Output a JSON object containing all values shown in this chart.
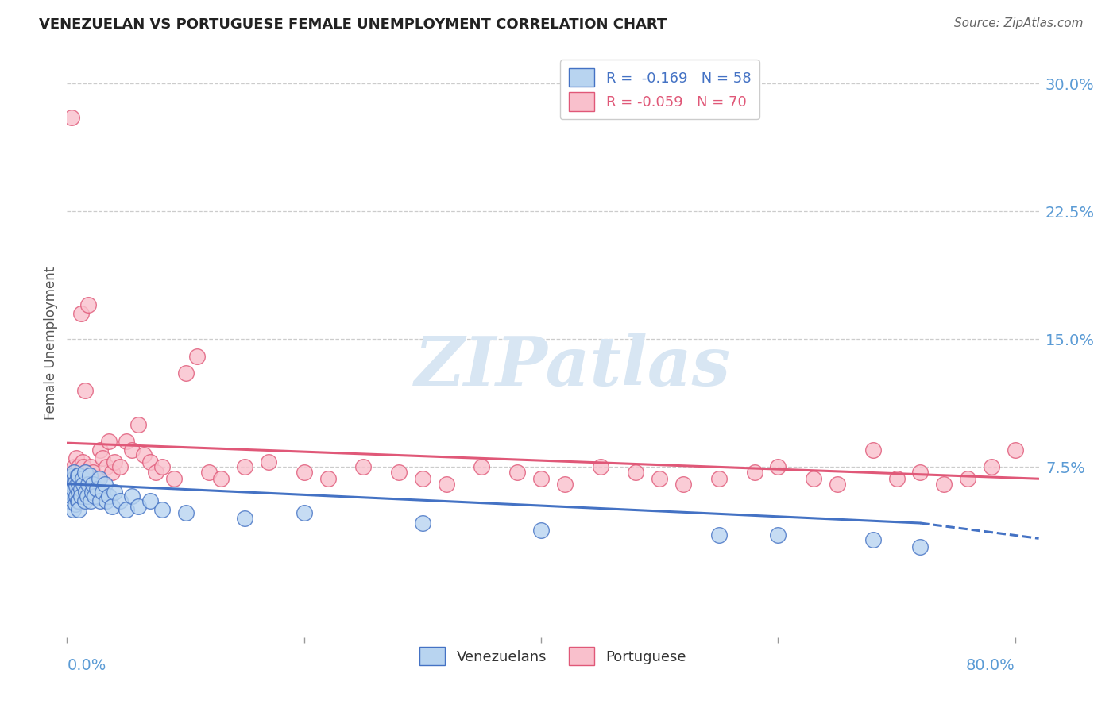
{
  "title": "VENEZUELAN VS PORTUGUESE FEMALE UNEMPLOYMENT CORRELATION CHART",
  "source": "Source: ZipAtlas.com",
  "ylabel": "Female Unemployment",
  "legend_venezuelan": "Venezuelans",
  "legend_portuguese": "Portuguese",
  "r_venezuelan": "-0.169",
  "n_venezuelan": "58",
  "r_portuguese": "-0.059",
  "n_portuguese": "70",
  "color_venezuelan_face": "#b8d4f0",
  "color_venezuelan_edge": "#4472c4",
  "color_portuguese_face": "#f9c0cc",
  "color_portuguese_edge": "#e05878",
  "color_trendline_venezuelan": "#4472c4",
  "color_trendline_portuguese": "#e05878",
  "color_axis_labels": "#5b9bd5",
  "color_watermark": "#d8e6f3",
  "background_color": "#ffffff",
  "xmin": 0.0,
  "xmax": 0.82,
  "ymin": -0.025,
  "ymax": 0.32,
  "ytick_values": [
    0.0,
    0.075,
    0.15,
    0.225,
    0.3
  ],
  "ytick_labels": [
    "",
    "7.5%",
    "15.0%",
    "22.5%",
    "30.0%"
  ],
  "xtick_values": [
    0.0,
    0.2,
    0.4,
    0.6,
    0.8
  ],
  "venezuelan_x": [
    0.002,
    0.003,
    0.004,
    0.004,
    0.005,
    0.005,
    0.005,
    0.006,
    0.006,
    0.007,
    0.007,
    0.008,
    0.008,
    0.009,
    0.009,
    0.01,
    0.01,
    0.01,
    0.01,
    0.01,
    0.012,
    0.012,
    0.013,
    0.014,
    0.015,
    0.015,
    0.016,
    0.017,
    0.018,
    0.019,
    0.02,
    0.021,
    0.022,
    0.023,
    0.025,
    0.027,
    0.028,
    0.03,
    0.032,
    0.033,
    0.035,
    0.038,
    0.04,
    0.045,
    0.05,
    0.055,
    0.06,
    0.07,
    0.08,
    0.1,
    0.15,
    0.2,
    0.3,
    0.4,
    0.55,
    0.6,
    0.68,
    0.72
  ],
  "venezuelan_y": [
    0.055,
    0.06,
    0.058,
    0.065,
    0.07,
    0.062,
    0.05,
    0.068,
    0.072,
    0.066,
    0.053,
    0.058,
    0.064,
    0.055,
    0.07,
    0.06,
    0.065,
    0.07,
    0.055,
    0.05,
    0.062,
    0.058,
    0.068,
    0.065,
    0.072,
    0.055,
    0.06,
    0.058,
    0.065,
    0.07,
    0.055,
    0.06,
    0.065,
    0.058,
    0.062,
    0.068,
    0.055,
    0.06,
    0.065,
    0.055,
    0.058,
    0.052,
    0.06,
    0.055,
    0.05,
    0.058,
    0.052,
    0.055,
    0.05,
    0.048,
    0.045,
    0.048,
    0.042,
    0.038,
    0.035,
    0.035,
    0.032,
    0.028
  ],
  "portuguese_x": [
    0.002,
    0.003,
    0.004,
    0.005,
    0.006,
    0.006,
    0.007,
    0.008,
    0.008,
    0.009,
    0.01,
    0.01,
    0.01,
    0.012,
    0.013,
    0.014,
    0.015,
    0.016,
    0.017,
    0.018,
    0.02,
    0.022,
    0.025,
    0.028,
    0.03,
    0.033,
    0.035,
    0.038,
    0.04,
    0.045,
    0.05,
    0.055,
    0.06,
    0.065,
    0.07,
    0.075,
    0.08,
    0.09,
    0.1,
    0.11,
    0.12,
    0.13,
    0.15,
    0.17,
    0.2,
    0.22,
    0.25,
    0.28,
    0.3,
    0.32,
    0.35,
    0.38,
    0.4,
    0.42,
    0.45,
    0.48,
    0.5,
    0.52,
    0.55,
    0.58,
    0.6,
    0.63,
    0.65,
    0.68,
    0.7,
    0.72,
    0.74,
    0.76,
    0.78,
    0.8
  ],
  "portuguese_y": [
    0.065,
    0.07,
    0.28,
    0.072,
    0.068,
    0.075,
    0.065,
    0.07,
    0.08,
    0.068,
    0.072,
    0.075,
    0.068,
    0.165,
    0.078,
    0.075,
    0.12,
    0.072,
    0.068,
    0.17,
    0.075,
    0.072,
    0.068,
    0.085,
    0.08,
    0.075,
    0.09,
    0.072,
    0.078,
    0.075,
    0.09,
    0.085,
    0.1,
    0.082,
    0.078,
    0.072,
    0.075,
    0.068,
    0.13,
    0.14,
    0.072,
    0.068,
    0.075,
    0.078,
    0.072,
    0.068,
    0.075,
    0.072,
    0.068,
    0.065,
    0.075,
    0.072,
    0.068,
    0.065,
    0.075,
    0.072,
    0.068,
    0.065,
    0.068,
    0.072,
    0.075,
    0.068,
    0.065,
    0.085,
    0.068,
    0.072,
    0.065,
    0.068,
    0.075,
    0.085
  ],
  "trendline_por_x0": 0.0,
  "trendline_por_x1": 0.82,
  "trendline_por_y0": 0.089,
  "trendline_por_y1": 0.068,
  "trendline_ven_x0": 0.0,
  "trendline_ven_x1_solid": 0.72,
  "trendline_ven_x1_dash": 0.82,
  "trendline_ven_y0": 0.065,
  "trendline_ven_y1_solid": 0.042,
  "trendline_ven_y1_dash": 0.033
}
